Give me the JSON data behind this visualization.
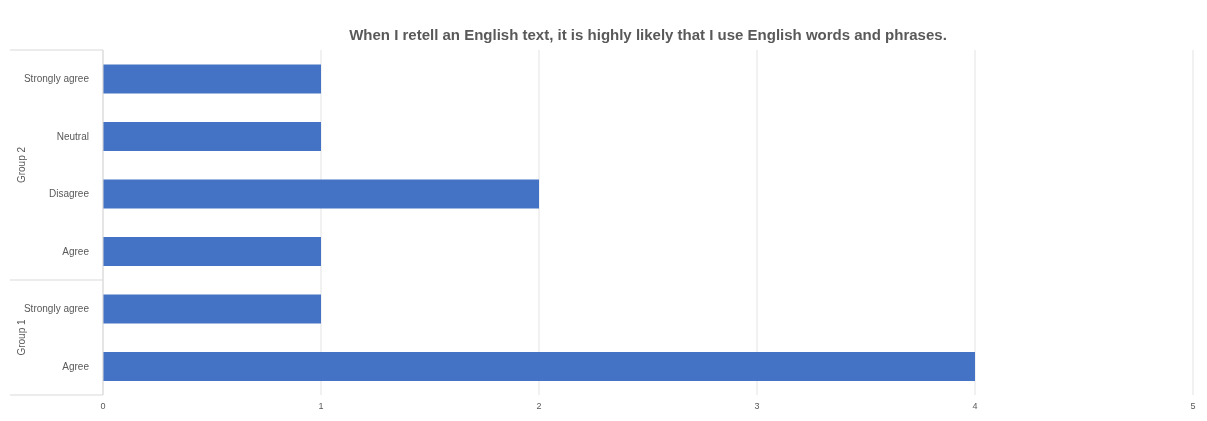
{
  "chart_data": {
    "type": "bar",
    "orientation": "horizontal",
    "title": "When I retell an English text, it is highly likely that I use English words and phrases.",
    "categories": [
      "Strongly agree",
      "Neutral",
      "Disagree",
      "Agree",
      "Strongly agree",
      "Agree"
    ],
    "values": [
      1,
      1,
      2,
      1,
      1,
      4
    ],
    "color": "#4472c4",
    "xlim": [
      0,
      5
    ],
    "xticks": [
      0,
      1,
      2,
      3,
      4,
      5
    ],
    "grid": "x",
    "annotations": [
      "Group 2",
      "Group 1"
    ]
  }
}
